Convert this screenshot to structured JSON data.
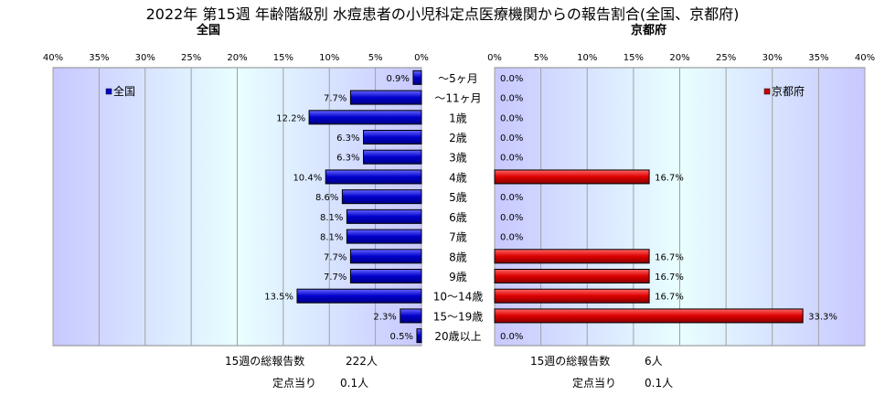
{
  "title": "2022年 第15週 年齢階級別 水痘患者の小児科定点医療機関からの報告割合(全国、京都府)",
  "categories": [
    "～5ヶ月",
    "～11ヶ月",
    "1歳",
    "2歳",
    "3歳",
    "4歳",
    "5歳",
    "6歳",
    "7歳",
    "8歳",
    "9歳",
    "10～14歳",
    "15～19歳",
    "20歳以上"
  ],
  "colors": {
    "zenkoku": "#0000cc",
    "kyoto": "#cc0000",
    "plot_bg_edge": "#c8c8ff",
    "plot_bg_center": "#e8ffff"
  },
  "chart_data": [
    {
      "type": "bar",
      "orientation": "horizontal",
      "title": "全国",
      "axis_direction": "reversed",
      "xlim": [
        0,
        40
      ],
      "ticks": [
        "40%",
        "35%",
        "30%",
        "25%",
        "20%",
        "15%",
        "10%",
        "5%",
        "0%"
      ],
      "legend": "top-left",
      "series": [
        {
          "name": "全国",
          "values": [
            0.9,
            7.7,
            12.2,
            6.3,
            6.3,
            10.4,
            8.6,
            8.1,
            8.1,
            7.7,
            7.7,
            13.5,
            2.3,
            0.5
          ]
        }
      ],
      "value_labels": [
        "0.9%",
        "7.7%",
        "12.2%",
        "6.3%",
        "6.3%",
        "10.4%",
        "8.6%",
        "8.1%",
        "8.1%",
        "7.7%",
        "7.7%",
        "13.5%",
        "2.3%",
        "0.5%"
      ]
    },
    {
      "type": "bar",
      "orientation": "horizontal",
      "title": "京都府",
      "xlim": [
        0,
        40
      ],
      "ticks": [
        "0%",
        "5%",
        "10%",
        "15%",
        "20%",
        "25%",
        "30%",
        "35%",
        "40%"
      ],
      "legend": "top-right",
      "series": [
        {
          "name": "京都府",
          "values": [
            0,
            0,
            0,
            0,
            0,
            16.7,
            0,
            0,
            0,
            16.7,
            16.7,
            16.7,
            33.3,
            0
          ]
        }
      ],
      "value_labels": [
        "0.0%",
        "0.0%",
        "0.0%",
        "0.0%",
        "0.0%",
        "16.7%",
        "0.0%",
        "0.0%",
        "0.0%",
        "16.7%",
        "16.7%",
        "16.7%",
        "33.3%",
        "0.0%"
      ]
    }
  ],
  "footer": {
    "left": {
      "total_label": "15週の総報告数",
      "total_value": "222人",
      "per_label": "定点当り",
      "per_value": "0.1人"
    },
    "right": {
      "total_label": "15週の総報告数",
      "total_value": "6人",
      "per_label": "定点当り",
      "per_value": "0.1人"
    }
  }
}
